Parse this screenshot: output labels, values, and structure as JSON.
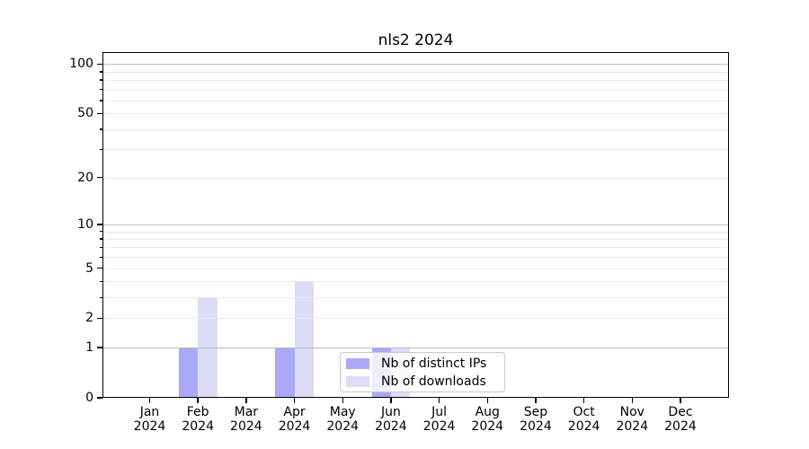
{
  "chart_data": {
    "type": "bar",
    "title": "nls2 2024",
    "categories": [
      "Jan",
      "Feb",
      "Mar",
      "Apr",
      "May",
      "Jun",
      "Jul",
      "Aug",
      "Sep",
      "Oct",
      "Nov",
      "Dec"
    ],
    "year_label": "2024",
    "series": [
      {
        "name": "Nb of distinct IPs",
        "color": "#a9a9f5",
        "values": [
          0,
          1,
          0,
          1,
          0,
          1,
          0,
          0,
          0,
          0,
          0,
          0
        ]
      },
      {
        "name": "Nb of downloads",
        "color": "#dcdcf9",
        "values": [
          0,
          3,
          0,
          4,
          0,
          1,
          0,
          0,
          0,
          0,
          0,
          0
        ]
      }
    ],
    "yscale": "log10(1+x)",
    "ylim": [
      0,
      118
    ],
    "yticks": [
      0,
      1,
      2,
      5,
      10,
      20,
      50,
      100
    ],
    "grid": {
      "dark_line_values": [
        1,
        10,
        100
      ],
      "light_line_values": [
        2,
        3,
        4,
        5,
        6,
        7,
        8,
        9,
        20,
        30,
        40,
        50,
        60,
        70,
        80,
        90
      ],
      "dark_color": "#bdbdbd",
      "light_color": "#e9e9e9"
    },
    "legend": {
      "position": "bottom-center"
    },
    "axis_color": "#000000",
    "background_color": "#ffffff"
  }
}
